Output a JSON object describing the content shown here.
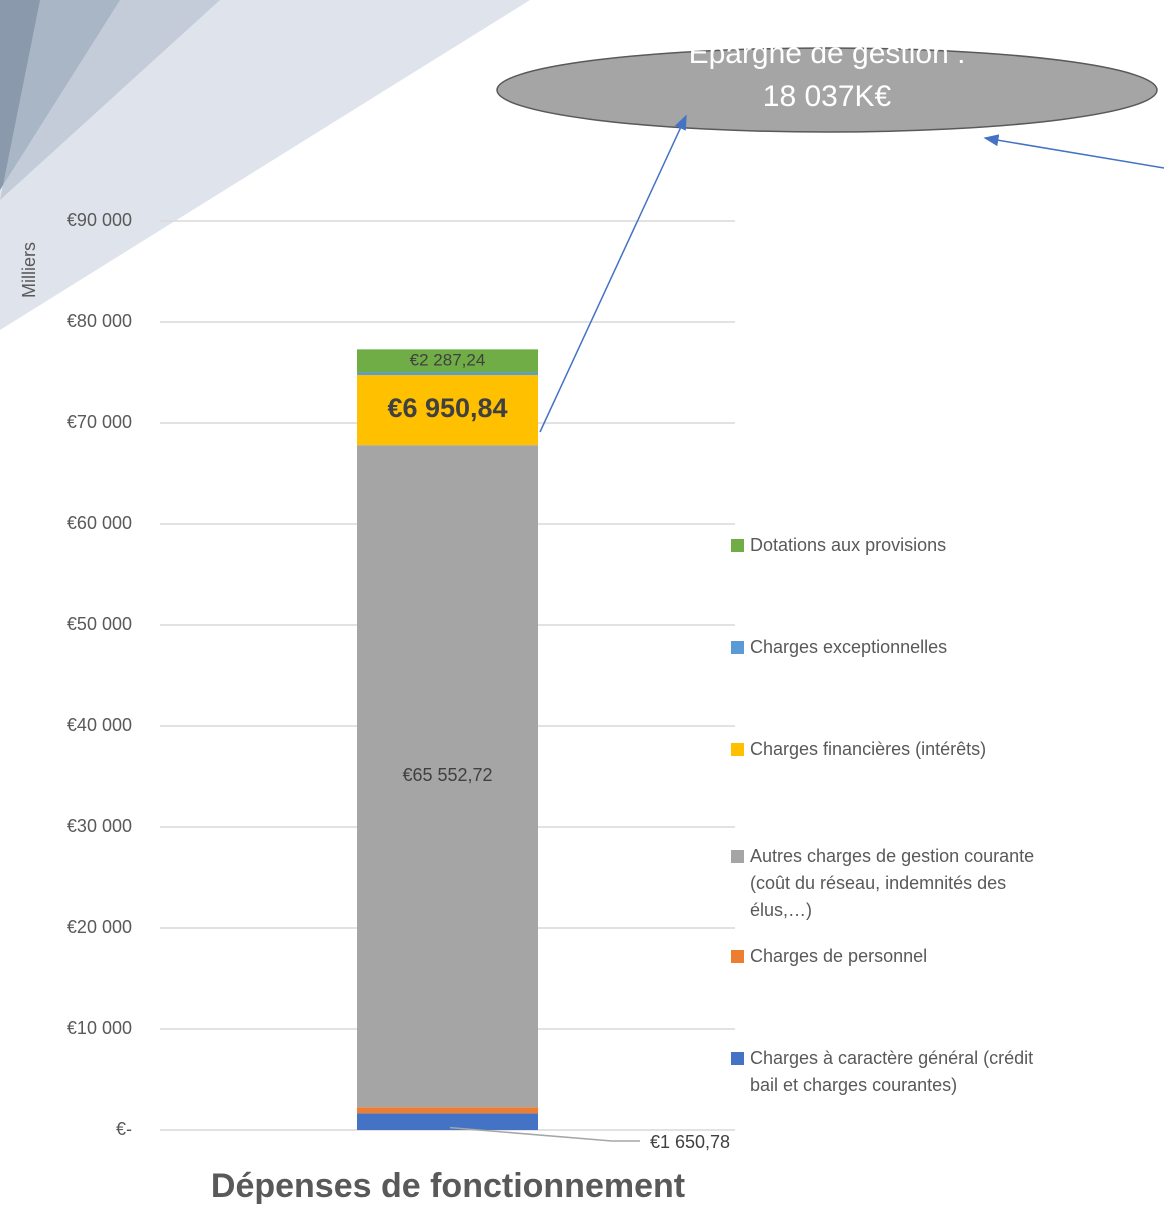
{
  "chart_data": {
    "type": "stacked_bar",
    "categories": [
      "Dépenses de fonctionnement"
    ],
    "y_axis_label": "Milliers",
    "ylim": [
      0,
      90000
    ],
    "yticks": [
      {
        "value": 0,
        "label": "€-"
      },
      {
        "value": 10000,
        "label": "€10 000"
      },
      {
        "value": 20000,
        "label": "€20 000"
      },
      {
        "value": 30000,
        "label": "€30 000"
      },
      {
        "value": 40000,
        "label": "€40 000"
      },
      {
        "value": 50000,
        "label": "€50 000"
      },
      {
        "value": 60000,
        "label": "€60 000"
      },
      {
        "value": 70000,
        "label": "€70 000"
      },
      {
        "value": 80000,
        "label": "€80 000"
      },
      {
        "value": 90000,
        "label": "€90 000"
      }
    ],
    "grid": true,
    "legend": "right",
    "series": [
      {
        "name": "Charges à caractère général (crédit bail et charges courantes)",
        "color": "#4472c4",
        "values": [
          1650.78
        ],
        "value_labels": [
          "€1 650,78"
        ]
      },
      {
        "name": "Charges de personnel",
        "color": "#ed7d31",
        "values": [
          600
        ]
      },
      {
        "name": "Autres charges de gestion courante (coût du réseau, indemnités des élus,…)",
        "color": "#a5a5a5",
        "values": [
          65552.72
        ],
        "value_labels": [
          "€65 552,72"
        ]
      },
      {
        "name": "Charges financières (intérêts)",
        "color": "#ffc000",
        "values": [
          6950.84
        ],
        "value_labels": [
          "€6 950,84"
        ]
      },
      {
        "name": "Charges exceptionnelles",
        "color": "#5b9bd5",
        "values": [
          250
        ]
      },
      {
        "name": "Dotations aux provisions",
        "color": "#70ad47",
        "values": [
          2287.24
        ],
        "value_labels": [
          "€2 287,24"
        ]
      }
    ],
    "annotation": [
      "Epargne de gestion :",
      "18 037K€"
    ]
  }
}
